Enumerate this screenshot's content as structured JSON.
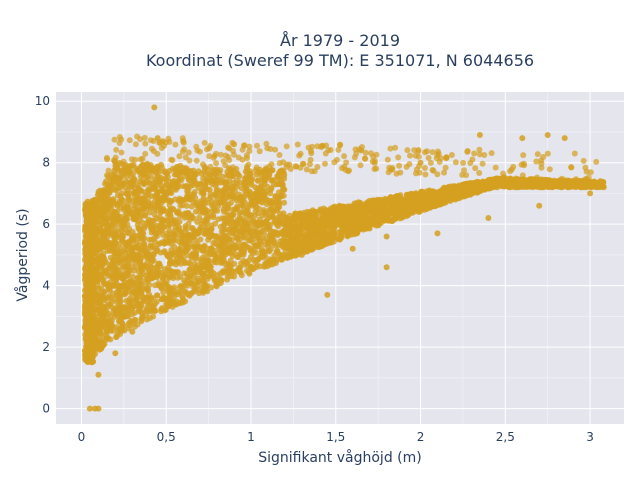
{
  "chart_data": {
    "type": "scatter",
    "title_line1": "År 1979 - 2019",
    "title_line2": "Koordinat (Sweref 99 TM): E 351071, N 6044656",
    "xlabel": "Signifikant våghöjd (m)",
    "ylabel": "Vågperiod (s)",
    "xlim": [
      -0.15,
      3.2
    ],
    "ylim": [
      -0.5,
      10.3
    ],
    "x_ticks": [
      0,
      0.5,
      1,
      1.5,
      2,
      2.5,
      3
    ],
    "x_tick_labels": [
      "0",
      "0,5",
      "1",
      "1,5",
      "2",
      "2,5",
      "3"
    ],
    "y_ticks": [
      0,
      2,
      4,
      6,
      8,
      10
    ],
    "y_tick_labels": [
      "0",
      "2",
      "4",
      "6",
      "8",
      "10"
    ],
    "grid": true,
    "legend": "none",
    "marker_color": "#d4a020",
    "plot_bg": "#e5e5ee",
    "series": [
      {
        "values_sample": [
          [
            0.43,
            9.8
          ],
          [
            0.45,
            8.8
          ],
          [
            0.48,
            8.7
          ],
          [
            0.6,
            8.7
          ],
          [
            0.9,
            8.6
          ],
          [
            0.05,
            0.0
          ],
          [
            0.08,
            0.0
          ],
          [
            0.1,
            0.0
          ],
          [
            0.04,
            4.1
          ],
          [
            0.05,
            2.8
          ],
          [
            1.65,
            8.4
          ],
          [
            2.0,
            8.0
          ],
          [
            2.35,
            8.9
          ],
          [
            2.6,
            8.8
          ],
          [
            2.75,
            8.9
          ],
          [
            2.85,
            8.8
          ],
          [
            3.08,
            7.2
          ],
          [
            3.06,
            7.4
          ],
          [
            2.9,
            7.4
          ],
          [
            2.55,
            7.3
          ],
          [
            0.1,
            1.1
          ],
          [
            0.2,
            1.8
          ],
          [
            0.3,
            2.5
          ],
          [
            0.5,
            3.4
          ],
          [
            0.8,
            4.1
          ],
          [
            1.0,
            4.6
          ],
          [
            1.3,
            5.0
          ],
          [
            1.6,
            5.2
          ],
          [
            1.8,
            5.6
          ],
          [
            2.1,
            5.7
          ],
          [
            2.4,
            6.2
          ],
          [
            2.7,
            6.6
          ],
          [
            3.0,
            7.0
          ],
          [
            1.45,
            3.7
          ],
          [
            1.8,
            4.6
          ]
        ]
      }
    ]
  }
}
